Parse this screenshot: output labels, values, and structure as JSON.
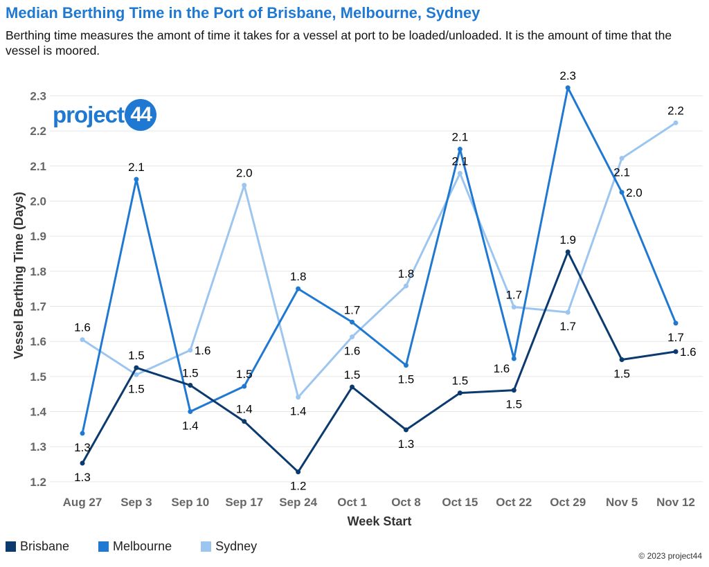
{
  "title": "Median Berthing Time in the Port of Brisbane, Melbourne, Sydney",
  "subtitle": "Berthing time measures the amont of time it takes for a vessel at port to be loaded/unloaded. It is the amount of time that the vessel is moored.",
  "logo": {
    "text": "project",
    "badge": "44"
  },
  "copyright": "© 2023 project44",
  "colors": {
    "brisbane": "#0b3a6e",
    "melbourne": "#1f78d1",
    "sydney": "#9cc6f0",
    "title": "#1f78d1",
    "grid": "#e6e6e6"
  },
  "chart_data": {
    "type": "line",
    "title": "Median Berthing Time in the Port of Brisbane, Melbourne, Sydney",
    "xlabel": "Week Start",
    "ylabel": "Vessel Berthing Time (Days)",
    "ylim": [
      1.18,
      2.36
    ],
    "yticks": [
      "1.2",
      "1.3",
      "1.4",
      "1.5",
      "1.6",
      "1.7",
      "1.8",
      "1.9",
      "2.0",
      "2.1",
      "2.2",
      "2.3"
    ],
    "grid": true,
    "legend": "bottom-left",
    "categories": [
      "Aug 27",
      "Sep 3",
      "Sep 10",
      "Sep 17",
      "Sep 24",
      "Oct 1",
      "Oct 8",
      "Oct 15",
      "Oct 22",
      "Oct 29",
      "Nov 5",
      "Nov 12"
    ],
    "series": [
      {
        "name": "Brisbane",
        "color": "#0b3a6e",
        "values": [
          1.253,
          1.525,
          1.475,
          1.372,
          1.228,
          1.47,
          1.348,
          1.453,
          1.461,
          1.855,
          1.548,
          1.571
        ],
        "labels": [
          "1.3",
          "1.5",
          "1.5",
          "1.4",
          "1.2",
          "1.5",
          "1.3",
          "1.5",
          "1.5",
          "1.9",
          "1.5",
          "1.6"
        ]
      },
      {
        "name": "Melbourne",
        "color": "#1f78d1",
        "values": [
          1.338,
          2.062,
          1.4,
          1.472,
          1.75,
          1.655,
          1.532,
          2.148,
          1.551,
          2.323,
          2.025,
          1.652
        ],
        "labels": [
          "1.3",
          "2.1",
          "1.4",
          "1.5",
          "1.8",
          "1.7",
          "1.5",
          "2.1",
          "1.6",
          "2.3",
          "2.0",
          "1.7"
        ]
      },
      {
        "name": "Sydney",
        "color": "#9cc6f0",
        "values": [
          1.605,
          1.505,
          1.575,
          2.045,
          1.441,
          1.613,
          1.758,
          2.079,
          1.698,
          1.683,
          2.122,
          2.223
        ],
        "labels": [
          "1.6",
          "1.5",
          "1.6",
          "2.0",
          "1.4",
          "1.6",
          "1.8",
          "2.1",
          "1.7",
          "1.7",
          "2.1",
          "2.2"
        ]
      }
    ]
  }
}
